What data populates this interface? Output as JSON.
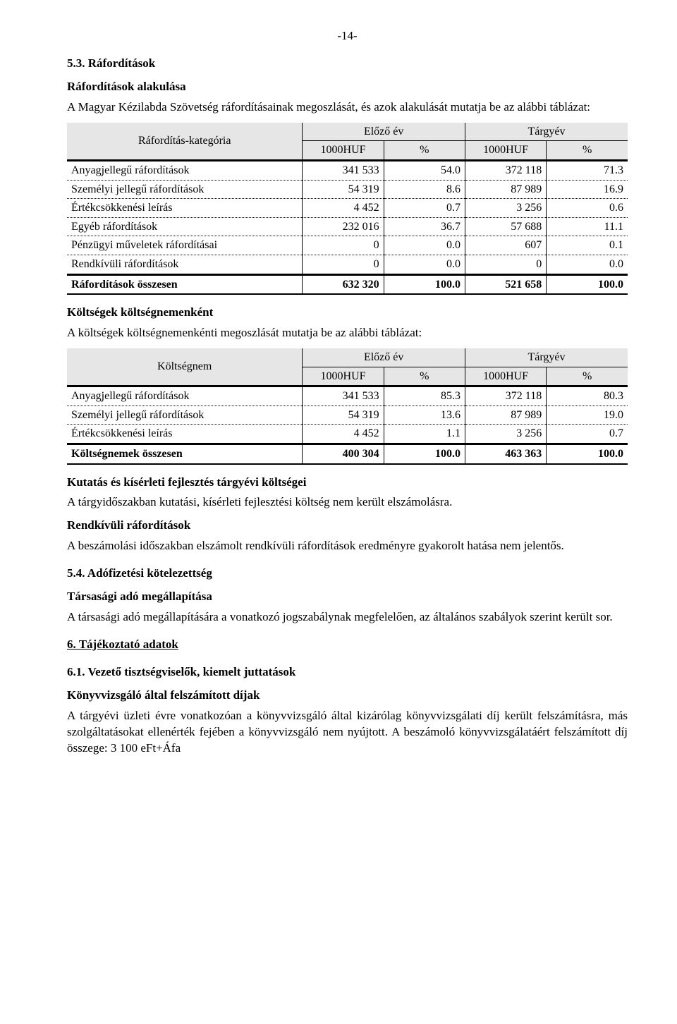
{
  "pageNumber": "-14-",
  "sec53_title": "5.3. Ráfordítások",
  "sec53_sub": "Ráfordítások alakulása",
  "sec53_intro": "A Magyar Kézilabda Szövetség ráfordításainak megoszlását, és azok alakulását mutatja be az alábbi táblázat:",
  "table1": {
    "cat_header": "Ráfordítás-kategória",
    "col_group_prev": "Előző év",
    "col_group_curr": "Tárgyév",
    "col_amount": "1000HUF",
    "col_pct": "%",
    "rows": [
      {
        "label": "Anyagjellegű ráfordítások",
        "pa": "341 533",
        "pp": "54.0",
        "ca": "372 118",
        "cp": "71.3"
      },
      {
        "label": "Személyi jellegű ráfordítások",
        "pa": "54 319",
        "pp": "8.6",
        "ca": "87 989",
        "cp": "16.9"
      },
      {
        "label": "Értékcsökkenési leírás",
        "pa": "4 452",
        "pp": "0.7",
        "ca": "3 256",
        "cp": "0.6"
      },
      {
        "label": "Egyéb ráfordítások",
        "pa": "232 016",
        "pp": "36.7",
        "ca": "57 688",
        "cp": "11.1"
      },
      {
        "label": "Pénzügyi műveletek ráfordításai",
        "pa": "0",
        "pp": "0.0",
        "ca": "607",
        "cp": "0.1"
      },
      {
        "label": "Rendkívüli ráfordítások",
        "pa": "0",
        "pp": "0.0",
        "ca": "0",
        "cp": "0.0"
      }
    ],
    "total": {
      "label": "Ráfordítások összesen",
      "pa": "632 320",
      "pp": "100.0",
      "ca": "521 658",
      "cp": "100.0"
    }
  },
  "costs_title": "Költségek költségnemenként",
  "costs_intro": "A költségek költségnemenkénti megoszlását mutatja be az alábbi táblázat:",
  "table2": {
    "cat_header": "Költségnem",
    "col_group_prev": "Előző év",
    "col_group_curr": "Tárgyév",
    "col_amount": "1000HUF",
    "col_pct": "%",
    "rows": [
      {
        "label": "Anyagjellegű ráfordítások",
        "pa": "341 533",
        "pp": "85.3",
        "ca": "372 118",
        "cp": "80.3"
      },
      {
        "label": "Személyi jellegű ráfordítások",
        "pa": "54 319",
        "pp": "13.6",
        "ca": "87 989",
        "cp": "19.0"
      },
      {
        "label": "Értékcsökkenési leírás",
        "pa": "4 452",
        "pp": "1.1",
        "ca": "3 256",
        "cp": "0.7"
      }
    ],
    "total": {
      "label": "Költségnemek összesen",
      "pa": "400 304",
      "pp": "100.0",
      "ca": "463 363",
      "cp": "100.0"
    }
  },
  "research_title": "Kutatás és kísérleti fejlesztés tárgyévi költségei",
  "research_text": "A tárgyidőszakban kutatási, kísérleti fejlesztési költség nem került elszámolásra.",
  "extra_title": "Rendkívüli ráfordítások",
  "extra_text": "A beszámolási időszakban elszámolt rendkívüli ráfordítások eredményre gyakorolt hatása nem jelentős.",
  "sec54_title": "5.4. Adófizetési kötelezettség",
  "sec54_sub": "Társasági adó megállapítása",
  "sec54_text": "A társasági adó megállapítására a vonatkozó jogszabálynak megfelelően, az általános szabályok szerint került sor.",
  "sec6_title": "6. Tájékoztató adatok",
  "sec61_title": "6.1. Vezető tisztségviselők, kiemelt juttatások",
  "sec61_sub": "Könyvvizsgáló által felszámított díjak",
  "sec61_text": "A tárgyévi üzleti évre vonatkozóan a könyvvizsgáló által kizárólag könyvvizsgálati díj került felszámításra, más szolgáltatásokat ellenérték fejében a könyvvizsgáló nem nyújtott. A beszámoló könyvvizsgálatáért felszámított díj összege: 3 100 eFt+Áfa"
}
